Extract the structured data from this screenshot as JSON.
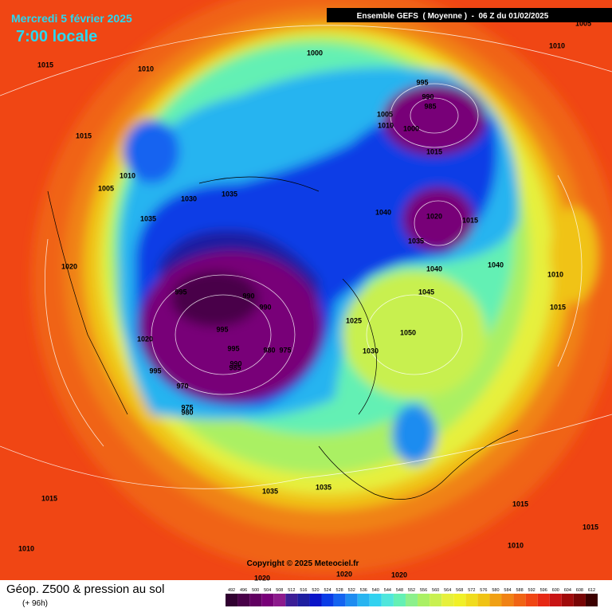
{
  "header": {
    "date": "Mercredi 5 février 2025",
    "time": "7:00 locale",
    "model": "Ensemble GEFS  ( Moyenne )  -  06 Z du 01/02/2025"
  },
  "map": {
    "pressure_labels": [
      1015,
      1010,
      1000,
      995,
      990,
      985,
      1005,
      1010,
      1000,
      1015,
      1015,
      1010,
      1005,
      1030,
      1035,
      1040,
      1020,
      1015,
      1035,
      1035,
      1040,
      1040,
      1020,
      995,
      990,
      990,
      995,
      1020,
      1025,
      1045,
      1050,
      1030,
      995,
      980,
      975,
      990,
      985,
      995,
      970,
      975,
      980,
      1010,
      1015,
      1035,
      1035,
      1015,
      1015,
      1015,
      1010,
      1010,
      1020,
      1020,
      1020,
      1005,
      1010
    ],
    "copyright": "Copyright © 2025 Meteociel.fr"
  },
  "footer": {
    "title": "Géop. Z500 & pression au sol",
    "lead": "(+ 96h)"
  },
  "legend": {
    "ticks": [
      492,
      496,
      500,
      504,
      508,
      512,
      516,
      520,
      524,
      528,
      532,
      536,
      540,
      544,
      548,
      552,
      556,
      560,
      564,
      568,
      572,
      576,
      580,
      584,
      588,
      592,
      596,
      600,
      604,
      608,
      612
    ],
    "colors": [
      "#300030",
      "#480048",
      "#600060",
      "#780078",
      "#8c1a8c",
      "#3c1e96",
      "#1e1ea0",
      "#0a14c8",
      "#0a3ce6",
      "#1464f0",
      "#1e8cf0",
      "#28b4f0",
      "#32d2f0",
      "#50e6dc",
      "#64f0b4",
      "#8cf08c",
      "#aaf064",
      "#c8f050",
      "#e6f03c",
      "#f0f028",
      "#f0dc1e",
      "#f0c314",
      "#f0a014",
      "#f08214",
      "#f06414",
      "#f04614",
      "#e62814",
      "#c81414",
      "#a00a0a",
      "#780505",
      "#3c0000"
    ]
  }
}
